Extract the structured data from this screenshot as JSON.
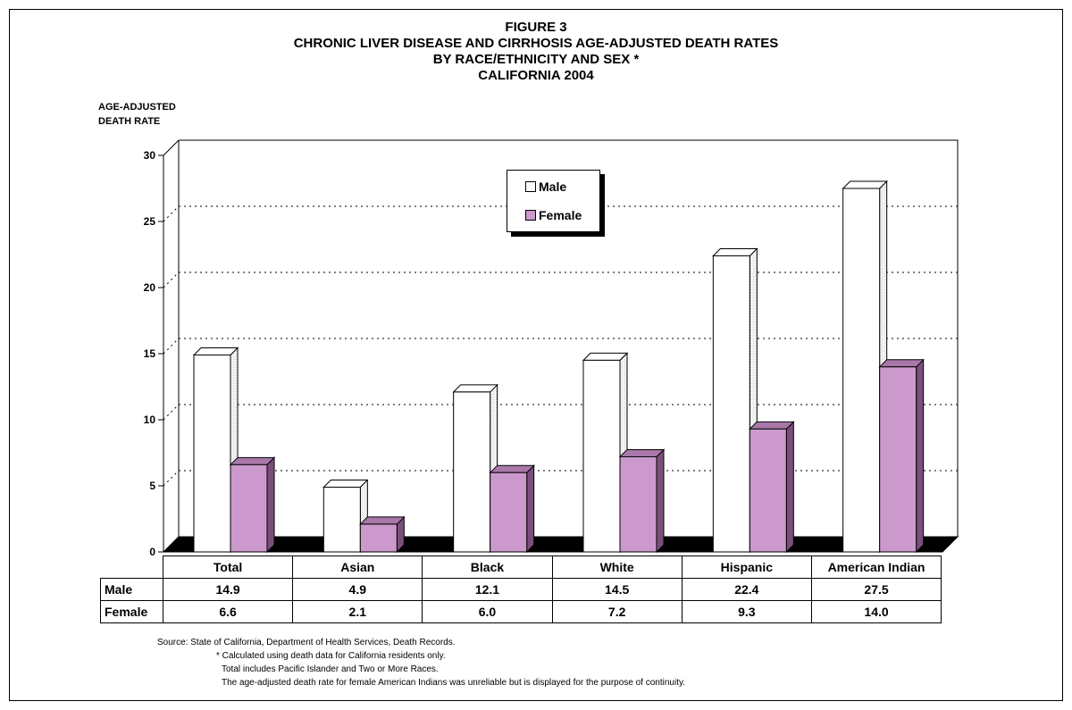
{
  "title": {
    "line1": "FIGURE 3",
    "line2": "CHRONIC LIVER DISEASE AND CIRRHOSIS AGE-ADJUSTED DEATH RATES",
    "line3": "BY RACE/ETHNICITY AND SEX *",
    "line4": "CALIFORNIA 2004"
  },
  "chart_data": {
    "type": "bar",
    "title": "CHRONIC LIVER DISEASE AND CIRRHOSIS AGE-ADJUSTED DEATH RATES BY RACE/ETHNICITY AND SEX * CALIFORNIA 2004",
    "ylabel_line1": "AGE-ADJUSTED",
    "ylabel_line2": "DEATH RATE",
    "ylim": [
      0,
      30
    ],
    "yticks": [
      0,
      5,
      10,
      15,
      20,
      25,
      30
    ],
    "grid": "dotted horizontal",
    "categories": [
      "Total",
      "Asian",
      "Black",
      "White",
      "Hispanic",
      "American Indian"
    ],
    "series": [
      {
        "name": "Male",
        "values": [
          14.9,
          4.9,
          12.1,
          14.5,
          22.4,
          27.5
        ],
        "color": "#ffffff"
      },
      {
        "name": "Female",
        "values": [
          6.6,
          2.1,
          6.0,
          7.2,
          9.3,
          14.0
        ],
        "color": "#cc99cc"
      }
    ],
    "legend": "top-center"
  },
  "table": {
    "row_labels": [
      "Male",
      "Female"
    ],
    "male_values": [
      "14.9",
      "4.9",
      "12.1",
      "14.5",
      "22.4",
      "27.5"
    ],
    "female_values": [
      "6.6",
      "2.1",
      "6.0",
      "7.2",
      "9.3",
      "14.0"
    ]
  },
  "legend": {
    "male": "Male",
    "female": "Female"
  },
  "source": {
    "line1": "Source:  State of California, Department of Health Services, Death Records.",
    "line2": "*  Calculated using death data for California residents only.",
    "line3": "Total includes Pacific Islander and Two or More Races.",
    "line4": "The age-adjusted death rate for female American Indians was unreliable but is displayed for the purpose of continuity."
  }
}
